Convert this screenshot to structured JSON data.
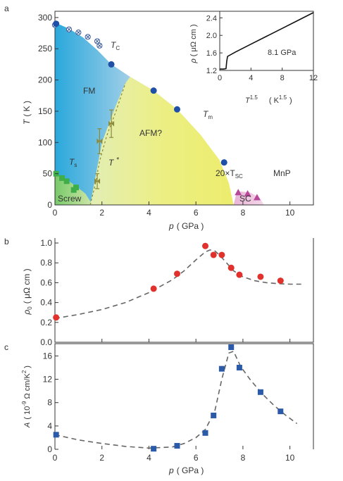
{
  "chart_data": [
    {
      "panel": "a",
      "type": "scatter",
      "xlabel_sym": "p",
      "xlabel_unit": "( GPa )",
      "ylabel_sym": "T",
      "ylabel_unit": "( K )",
      "xlim": [
        0,
        11
      ],
      "ylim": [
        0,
        310
      ],
      "xticks": [
        "0",
        "2",
        "4",
        "6",
        "8",
        "10"
      ],
      "yticks": [
        "0",
        "50",
        "100",
        "150",
        "200",
        "250",
        "300"
      ],
      "series": [
        {
          "name": "T_C",
          "marker": "otimes",
          "color": "#3a5a9a",
          "x": [
            0.0,
            0.6,
            1.0,
            1.4,
            1.8,
            1.9
          ],
          "y": [
            288,
            281,
            276,
            269,
            262,
            255
          ]
        },
        {
          "name": "T_m",
          "marker": "circle",
          "color": "#1f4fa6",
          "x": [
            0.05,
            2.4,
            4.2,
            5.2,
            7.2
          ],
          "y": [
            290,
            225,
            183,
            153,
            68
          ]
        },
        {
          "name": "T_s",
          "marker": "square",
          "color": "#3fae49",
          "x": [
            0.05,
            0.3,
            0.5,
            0.8,
            0.9
          ],
          "y": [
            50,
            43,
            38,
            24,
            28
          ]
        },
        {
          "name": "T*",
          "marker": "bowtie",
          "color": "#8a8a3a",
          "x": [
            1.8,
            1.9,
            2.4
          ],
          "y": [
            38,
            102,
            130
          ],
          "err": [
            12,
            20,
            22
          ]
        },
        {
          "name": "20xT_SC",
          "marker": "triangle",
          "color": "#b7489a",
          "x": [
            7.8,
            8.2,
            8.6
          ],
          "y": [
            20,
            18,
            12
          ]
        }
      ],
      "region_labels": {
        "fm": "FM",
        "afm": "AFM?",
        "screw": "Screw",
        "sc": "SC",
        "mnp": "MnP"
      },
      "curve_labels": {
        "tc_main": "T",
        "tc_sub": "C",
        "tm_main": "T",
        "tm_sub": "m",
        "ts_main": "T",
        "ts_sub": "s",
        "tstar_main": "T",
        "tstar_sup": "*",
        "tsc_main": "20×T",
        "tsc_sub": "SC"
      },
      "inset": {
        "type": "line",
        "ylabel_sym": "ρ",
        "ylabel_unit": "( μΩ cm )",
        "xlabel_main": "T",
        "xlabel_sup": "1.5",
        "xlabel_unit_open": "( K",
        "xlabel_unit_sup": "1.5",
        "xlabel_unit_close": ")",
        "annotation": "8.1 GPa",
        "xlim": [
          0,
          12
        ],
        "ylim": [
          1.2,
          2.55
        ],
        "xticks": [
          "0",
          "4",
          "8",
          "12"
        ],
        "yticks": [
          "1.2",
          "1.6",
          "2.0",
          "2.4"
        ],
        "x": [
          0.0,
          0.5,
          0.8,
          0.9,
          1.0,
          2.0,
          4.0,
          6.0,
          8.0,
          10.0,
          11.0,
          12.0
        ],
        "y": [
          1.23,
          1.23,
          1.24,
          1.42,
          1.52,
          1.62,
          1.8,
          1.98,
          2.16,
          2.34,
          2.43,
          2.52
        ]
      }
    },
    {
      "panel": "b",
      "type": "scatter",
      "xlabel": "",
      "ylabel_sym": "ρ",
      "ylabel_sub": "0",
      "ylabel_unit": "( μΩ cm )",
      "xlim": [
        0,
        11
      ],
      "ylim": [
        0,
        1.05
      ],
      "yticks": [
        "0.0",
        "0.2",
        "0.4",
        "0.6",
        "0.8",
        "1.0"
      ],
      "color": "#e0312d",
      "x": [
        0.05,
        4.2,
        5.2,
        6.4,
        6.75,
        7.1,
        7.5,
        7.85,
        8.75,
        9.6
      ],
      "y": [
        0.25,
        0.54,
        0.69,
        0.97,
        0.88,
        0.88,
        0.75,
        0.68,
        0.66,
        0.62
      ],
      "fit_x": [
        0,
        1,
        2,
        3,
        4,
        5,
        5.5,
        6,
        6.4,
        6.6,
        6.8,
        7.0,
        7.3,
        7.6,
        8.0,
        8.5,
        9.0,
        9.5,
        10.0,
        10.5
      ],
      "fit_y": [
        0.24,
        0.28,
        0.33,
        0.4,
        0.5,
        0.63,
        0.72,
        0.83,
        0.91,
        0.93,
        0.92,
        0.88,
        0.8,
        0.72,
        0.66,
        0.62,
        0.6,
        0.59,
        0.585,
        0.585
      ]
    },
    {
      "panel": "c",
      "type": "scatter",
      "xlabel_sym": "p",
      "xlabel_unit": "( GPa )",
      "ylabel_sym": "A",
      "ylabel_open": "( 10",
      "ylabel_exp": "-9",
      "ylabel_mid": "Ω cm/K",
      "ylabel_exp2": "2",
      "ylabel_close": ")",
      "xlim": [
        0,
        11
      ],
      "ylim": [
        0,
        17.5
      ],
      "xticks": [
        "0",
        "2",
        "4",
        "6",
        "8",
        "10"
      ],
      "yticks": [
        "0",
        "4",
        "8",
        "12",
        "16"
      ],
      "color": "#2a5aa8",
      "x": [
        0.05,
        4.2,
        5.2,
        6.4,
        6.75,
        7.1,
        7.5,
        7.85,
        8.75,
        9.6
      ],
      "y": [
        2.5,
        0.1,
        0.6,
        2.8,
        5.8,
        13.8,
        17.5,
        14.0,
        9.8,
        6.5
      ],
      "fit_x": [
        0,
        1,
        2,
        3,
        4,
        5,
        5.5,
        6,
        6.4,
        6.8,
        7.1,
        7.4,
        7.6,
        7.9,
        8.3,
        8.8,
        9.3,
        9.8,
        10.3
      ],
      "fit_y": [
        2.5,
        1.6,
        1.0,
        0.5,
        0.2,
        0.4,
        1.0,
        2.0,
        3.4,
        6.5,
        12.0,
        16.5,
        16.8,
        14.2,
        12.0,
        9.6,
        7.6,
        5.9,
        4.4
      ]
    }
  ]
}
